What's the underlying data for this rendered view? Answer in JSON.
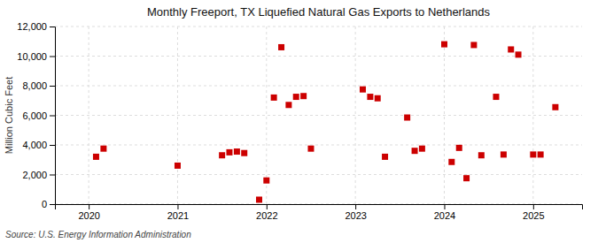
{
  "chart_data": {
    "type": "scatter",
    "title": "Monthly Freeport, TX Liquefied Natural Gas Exports to Netherlands",
    "ylabel": "Million Cubic Feet",
    "annotations": [
      "Source: U.S. Energy Information Administration"
    ],
    "color": "#cc0000",
    "marker": "square",
    "grid": true,
    "xlim": [
      2019.62,
      2025.55
    ],
    "xticks": [
      2020,
      2021,
      2022,
      2023,
      2024,
      2025
    ],
    "ylim": [
      0,
      12000
    ],
    "yticks": [
      0,
      {
        "value": 2000,
        "label": "2,000"
      },
      {
        "value": 4000,
        "label": "4,000"
      },
      {
        "value": 6000,
        "label": "6,000"
      },
      {
        "value": 8000,
        "label": "8,000"
      },
      {
        "value": 10000,
        "label": "10,000"
      },
      {
        "value": 12000,
        "label": "12,000"
      }
    ],
    "x": [
      2020.083,
      2020.167,
      2021.0,
      2021.5,
      2021.583,
      2021.667,
      2021.75,
      2021.917,
      2022.0,
      2022.083,
      2022.167,
      2022.25,
      2022.333,
      2022.417,
      2022.5,
      2023.083,
      2023.167,
      2023.25,
      2023.333,
      2023.583,
      2023.667,
      2023.75,
      2024.0,
      2024.083,
      2024.167,
      2024.25,
      2024.333,
      2024.417,
      2024.583,
      2024.667,
      2024.75,
      2024.833,
      2025.0,
      2025.083,
      2025.25
    ],
    "values": [
      3200,
      3750,
      2600,
      3300,
      3500,
      3550,
      3450,
      300,
      1600,
      7200,
      10600,
      6700,
      7250,
      7300,
      3750,
      7750,
      7250,
      7150,
      3200,
      5850,
      3600,
      3750,
      10800,
      2850,
      3800,
      1750,
      10750,
      3300,
      7250,
      3350,
      10450,
      10100,
      3350,
      3350,
      6550
    ]
  }
}
